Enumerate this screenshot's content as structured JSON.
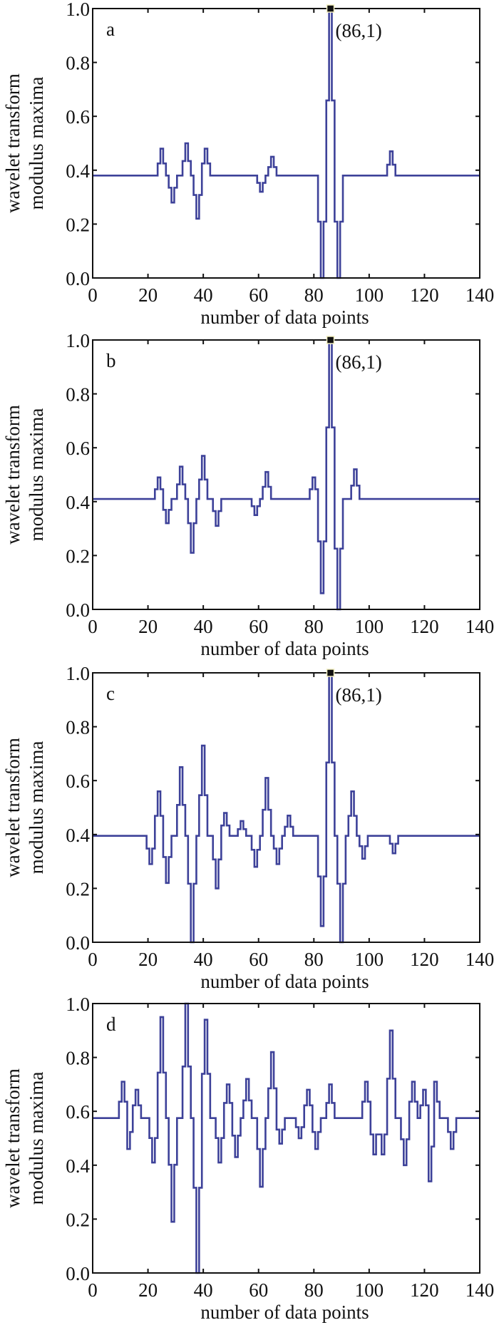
{
  "chart_data": [
    {
      "type": "line",
      "panel_label": "a",
      "xlabel": "number of data points",
      "ylabel": [
        "wavelet transform",
        "modulus maxima"
      ],
      "xlim": [
        0,
        140
      ],
      "ylim": [
        0,
        1
      ],
      "xticks": [
        0,
        20,
        40,
        60,
        80,
        100,
        120,
        140
      ],
      "yticks": [
        "0.0",
        "0.2",
        "0.4",
        "0.6",
        "0.8",
        "1.0"
      ],
      "line_color": "#3d4199",
      "baseline": 0.38,
      "spikes": [
        [
          25,
          0.48
        ],
        [
          29,
          0.28
        ],
        [
          34,
          0.5
        ],
        [
          38,
          0.22
        ],
        [
          41,
          0.48
        ],
        [
          61,
          0.32
        ],
        [
          65,
          0.45
        ],
        [
          83,
          0.0
        ],
        [
          86,
          1.0
        ],
        [
          89,
          0.0
        ],
        [
          108,
          0.47
        ]
      ],
      "marker": {
        "x": 86,
        "y": 1,
        "label": "(86,1)"
      }
    },
    {
      "type": "line",
      "panel_label": "b",
      "xlabel": "number of data points",
      "ylabel": [
        "wavelet transform",
        "modulus maxima"
      ],
      "xlim": [
        0,
        140
      ],
      "ylim": [
        0,
        1
      ],
      "xticks": [
        0,
        20,
        40,
        60,
        80,
        100,
        120,
        140
      ],
      "yticks": [
        "0.0",
        "0.2",
        "0.4",
        "0.6",
        "0.8",
        "1.0"
      ],
      "line_color": "#3d4199",
      "baseline": 0.41,
      "spikes": [
        [
          24,
          0.49
        ],
        [
          27,
          0.32
        ],
        [
          32,
          0.53
        ],
        [
          36,
          0.21
        ],
        [
          40,
          0.57
        ],
        [
          45,
          0.31
        ],
        [
          59,
          0.35
        ],
        [
          63,
          0.51
        ],
        [
          80,
          0.49
        ],
        [
          83,
          0.06
        ],
        [
          86,
          1.0
        ],
        [
          89,
          0.0
        ],
        [
          95,
          0.52
        ]
      ],
      "marker": {
        "x": 86,
        "y": 1,
        "label": "(86,1)"
      }
    },
    {
      "type": "line",
      "panel_label": "c",
      "xlabel": "number of data points",
      "ylabel": [
        "wavelet transform",
        "modulus maxima"
      ],
      "xlim": [
        0,
        140
      ],
      "ylim": [
        0,
        1
      ],
      "xticks": [
        0,
        20,
        40,
        60,
        80,
        100,
        120,
        140
      ],
      "yticks": [
        "0.0",
        "0.2",
        "0.4",
        "0.6",
        "0.8",
        "1.0"
      ],
      "line_color": "#3d4199",
      "baseline": 0.395,
      "spikes": [
        [
          21,
          0.29
        ],
        [
          24,
          0.56
        ],
        [
          27,
          0.22
        ],
        [
          32,
          0.65
        ],
        [
          36,
          0.0
        ],
        [
          40,
          0.73
        ],
        [
          45,
          0.2
        ],
        [
          48,
          0.48
        ],
        [
          54,
          0.45
        ],
        [
          59,
          0.28
        ],
        [
          63,
          0.61
        ],
        [
          67,
          0.29
        ],
        [
          71,
          0.47
        ],
        [
          83,
          0.06
        ],
        [
          86,
          1.0
        ],
        [
          90,
          0.0
        ],
        [
          94,
          0.56
        ],
        [
          98,
          0.31
        ],
        [
          109,
          0.33
        ]
      ],
      "marker": {
        "x": 86,
        "y": 1,
        "label": "(86,1)"
      }
    },
    {
      "type": "line",
      "panel_label": "d",
      "xlabel": "number of data points",
      "ylabel": [
        "wavelet transform",
        "modulus maxima"
      ],
      "xlim": [
        0,
        140
      ],
      "ylim": [
        0,
        1
      ],
      "xticks": [
        0,
        20,
        40,
        60,
        80,
        100,
        120,
        140
      ],
      "yticks": [
        "0.0",
        "0.2",
        "0.4",
        "0.6",
        "0.8",
        "1.0"
      ],
      "line_color": "#3d4199",
      "baseline": 0.575,
      "spikes": [
        [
          11,
          0.71
        ],
        [
          13,
          0.46
        ],
        [
          16,
          0.68
        ],
        [
          22,
          0.41
        ],
        [
          25,
          0.95
        ],
        [
          29,
          0.19
        ],
        [
          34,
          1.0
        ],
        [
          38,
          0.0
        ],
        [
          41,
          0.94
        ],
        [
          46,
          0.41
        ],
        [
          49,
          0.7
        ],
        [
          52,
          0.43
        ],
        [
          56,
          0.72
        ],
        [
          61,
          0.32
        ],
        [
          65,
          0.82
        ],
        [
          68,
          0.48
        ],
        [
          75,
          0.5
        ],
        [
          78,
          0.68
        ],
        [
          81,
          0.46
        ],
        [
          86,
          0.7
        ],
        [
          99,
          0.71
        ],
        [
          102,
          0.44
        ],
        [
          105,
          0.44
        ],
        [
          108,
          0.9
        ],
        [
          113,
          0.4
        ],
        [
          116,
          0.71
        ],
        [
          120,
          0.68
        ],
        [
          122,
          0.34
        ],
        [
          124,
          0.71
        ],
        [
          130,
          0.46
        ]
      ]
    }
  ]
}
